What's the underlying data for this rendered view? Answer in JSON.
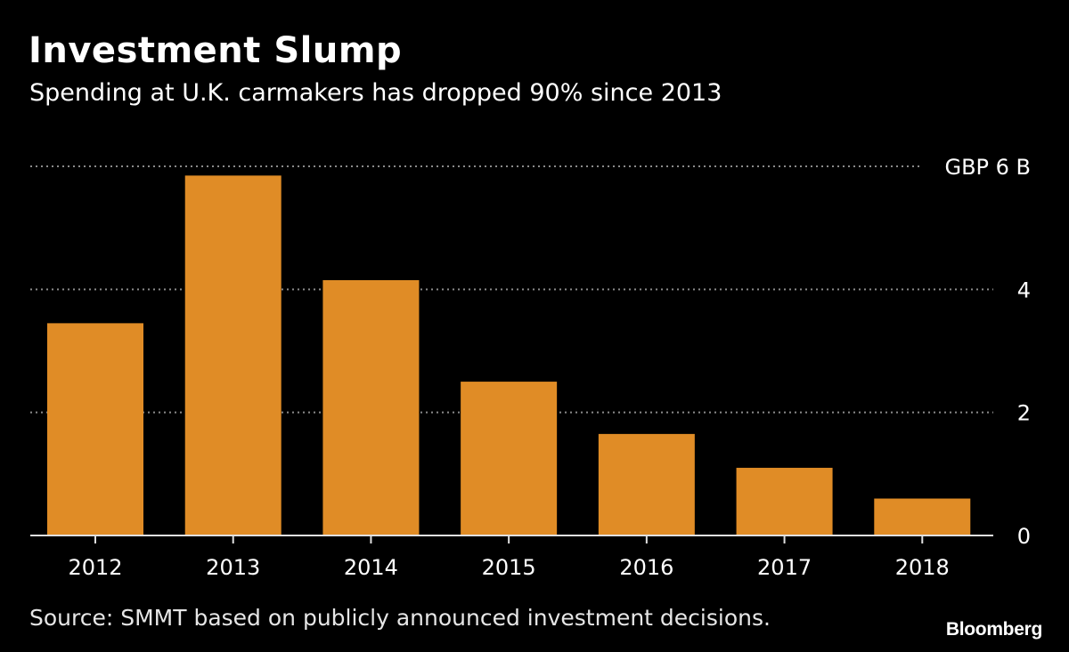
{
  "title": "Investment Slump",
  "subtitle": "Spending at U.K. carmakers has dropped 90% since 2013",
  "source": "Source: SMMT based on publicly announced investment decisions.",
  "brand": "Bloomberg",
  "colors": {
    "background": "#000000",
    "bar": "#e08c26",
    "grid": "#8a8a8a",
    "text": "#ffffff"
  },
  "chart_data": {
    "type": "bar",
    "categories": [
      "2012",
      "2013",
      "2014",
      "2015",
      "2016",
      "2017",
      "2018"
    ],
    "values": [
      3.45,
      5.85,
      4.15,
      2.5,
      1.65,
      1.1,
      0.6
    ],
    "title": "Investment Slump",
    "subtitle": "Spending at U.K. carmakers has dropped 90% since 2013",
    "xlabel": "",
    "ylabel": "",
    "ylim": [
      0,
      6
    ],
    "yticks": [
      0,
      2,
      4,
      6
    ],
    "ytick_labels": [
      "0",
      "2",
      "4",
      "GBP 6 B"
    ],
    "y_axis_position": "right",
    "grid": true,
    "legend": "none"
  }
}
